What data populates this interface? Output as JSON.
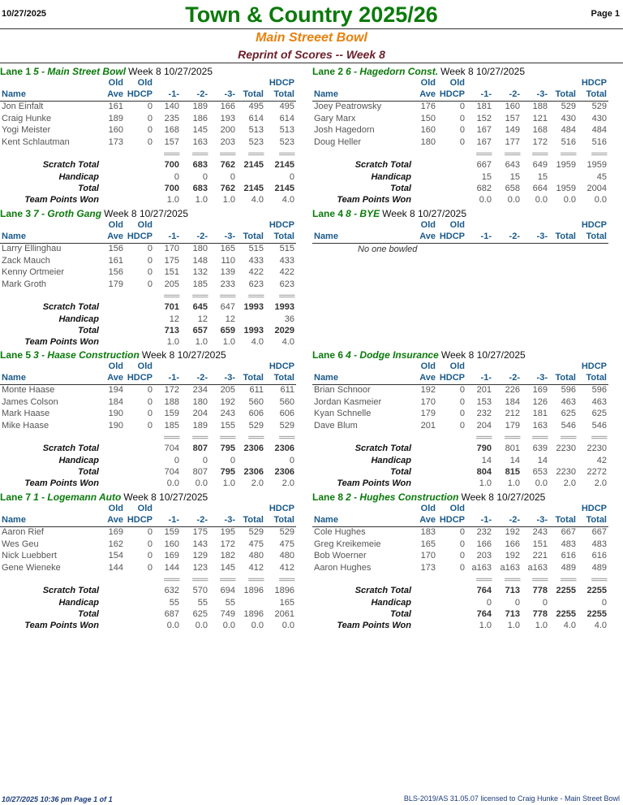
{
  "header": {
    "date": "10/27/2025",
    "page": "Page 1",
    "title": "Town & Country 2025/26",
    "subtitle": "Main Streeet Bowl",
    "report": "Reprint of Scores -- Week 8"
  },
  "columns": {
    "old": "Old",
    "ave": "Ave",
    "hdcp": "HDCP",
    "name": "Name",
    "g1": "-1-",
    "g2": "-2-",
    "g3": "-3-",
    "total": "Total",
    "hdcp_total": "Total",
    "sep": "===="
  },
  "row_labels": {
    "scratch": "Scratch Total",
    "handicap": "Handicap",
    "total": "Total",
    "points": "Team Points Won"
  },
  "lanes": [
    {
      "lane": "Lane 1",
      "team": "5 - Main Street Bowl",
      "week": "Week 8  10/27/2025",
      "players": [
        {
          "name": "Jon Einfalt",
          "ave": "161",
          "hdcp": "0",
          "g1": "140",
          "g2": "189",
          "g3": "166",
          "total": "495",
          "htotal": "495"
        },
        {
          "name": "Craig Hunke",
          "ave": "189",
          "hdcp": "0",
          "g1": "235",
          "g2": "186",
          "g3": "193",
          "total": "614",
          "htotal": "614"
        },
        {
          "name": "Yogi Meister",
          "ave": "160",
          "hdcp": "0",
          "g1": "168",
          "g2": "145",
          "g3": "200",
          "total": "513",
          "htotal": "513"
        },
        {
          "name": "Kent Schlautman",
          "ave": "173",
          "hdcp": "0",
          "g1": "157",
          "g2": "163",
          "g3": "203",
          "total": "523",
          "htotal": "523"
        }
      ],
      "scratch": [
        "700",
        "683",
        "762",
        "2145",
        "2145"
      ],
      "handicap": [
        "0",
        "0",
        "0",
        "",
        "0"
      ],
      "total": [
        "700",
        "683",
        "762",
        "2145",
        "2145"
      ],
      "points": [
        "1.0",
        "1.0",
        "1.0",
        "4.0",
        "4.0"
      ],
      "bold": {
        "scratch": [
          1,
          1,
          1,
          1,
          1
        ],
        "total": [
          1,
          1,
          1,
          1,
          1
        ]
      }
    },
    {
      "lane": "Lane 2",
      "team": "6 - Hagedorn Const.",
      "week": "Week 8  10/27/2025",
      "players": [
        {
          "name": "Joey Peatrowsky",
          "ave": "176",
          "hdcp": "0",
          "g1": "181",
          "g2": "160",
          "g3": "188",
          "total": "529",
          "htotal": "529"
        },
        {
          "name": "Gary Marx",
          "ave": "150",
          "hdcp": "0",
          "g1": "152",
          "g2": "157",
          "g3": "121",
          "total": "430",
          "htotal": "430"
        },
        {
          "name": "Josh Hagedorn",
          "ave": "160",
          "hdcp": "0",
          "g1": "167",
          "g2": "149",
          "g3": "168",
          "total": "484",
          "htotal": "484"
        },
        {
          "name": "Doug Heller",
          "ave": "180",
          "hdcp": "0",
          "g1": "167",
          "g2": "177",
          "g3": "172",
          "total": "516",
          "htotal": "516"
        }
      ],
      "scratch": [
        "667",
        "643",
        "649",
        "1959",
        "1959"
      ],
      "handicap": [
        "15",
        "15",
        "15",
        "",
        "45"
      ],
      "total": [
        "682",
        "658",
        "664",
        "1959",
        "2004"
      ],
      "points": [
        "0.0",
        "0.0",
        "0.0",
        "0.0",
        "0.0"
      ],
      "bold": {
        "scratch": [
          0,
          0,
          0,
          0,
          0
        ],
        "total": [
          0,
          0,
          0,
          0,
          0
        ]
      }
    },
    {
      "lane": "Lane 3",
      "team": "7 - Groth Gang",
      "week": "Week 8  10/27/2025",
      "players": [
        {
          "name": "Larry Ellinghau",
          "ave": "156",
          "hdcp": "0",
          "g1": "170",
          "g2": "180",
          "g3": "165",
          "total": "515",
          "htotal": "515"
        },
        {
          "name": "Zack Mauch",
          "ave": "161",
          "hdcp": "0",
          "g1": "175",
          "g2": "148",
          "g3": "110",
          "total": "433",
          "htotal": "433"
        },
        {
          "name": "Kenny Ortmeier",
          "ave": "156",
          "hdcp": "0",
          "g1": "151",
          "g2": "132",
          "g3": "139",
          "total": "422",
          "htotal": "422"
        },
        {
          "name": "Mark Groth",
          "ave": "179",
          "hdcp": "0",
          "g1": "205",
          "g2": "185",
          "g3": "233",
          "total": "623",
          "htotal": "623"
        }
      ],
      "scratch": [
        "701",
        "645",
        "647",
        "1993",
        "1993"
      ],
      "handicap": [
        "12",
        "12",
        "12",
        "",
        "36"
      ],
      "total": [
        "713",
        "657",
        "659",
        "1993",
        "2029"
      ],
      "points": [
        "1.0",
        "1.0",
        "1.0",
        "4.0",
        "4.0"
      ],
      "bold": {
        "scratch": [
          1,
          1,
          0,
          1,
          1
        ],
        "total": [
          1,
          1,
          1,
          1,
          1
        ]
      }
    },
    {
      "lane": "Lane 4",
      "team": "8 - BYE",
      "week": "Week 8  10/27/2025",
      "message": "No one bowled"
    },
    {
      "lane": "Lane 5",
      "team": "3 - Haase Construction",
      "week": "Week 8  10/27/2025",
      "players": [
        {
          "name": "Monte Haase",
          "ave": "194",
          "hdcp": "0",
          "g1": "172",
          "g2": "234",
          "g3": "205",
          "total": "611",
          "htotal": "611"
        },
        {
          "name": "James Colson",
          "ave": "184",
          "hdcp": "0",
          "g1": "188",
          "g2": "180",
          "g3": "192",
          "total": "560",
          "htotal": "560"
        },
        {
          "name": "Mark Haase",
          "ave": "190",
          "hdcp": "0",
          "g1": "159",
          "g2": "204",
          "g3": "243",
          "total": "606",
          "htotal": "606"
        },
        {
          "name": "Mike Haase",
          "ave": "190",
          "hdcp": "0",
          "g1": "185",
          "g2": "189",
          "g3": "155",
          "total": "529",
          "htotal": "529"
        }
      ],
      "scratch": [
        "704",
        "807",
        "795",
        "2306",
        "2306"
      ],
      "handicap": [
        "0",
        "0",
        "0",
        "",
        "0"
      ],
      "total": [
        "704",
        "807",
        "795",
        "2306",
        "2306"
      ],
      "points": [
        "0.0",
        "0.0",
        "1.0",
        "2.0",
        "2.0"
      ],
      "bold": {
        "scratch": [
          0,
          1,
          1,
          1,
          1
        ],
        "total": [
          0,
          0,
          1,
          1,
          1
        ]
      }
    },
    {
      "lane": "Lane 6",
      "team": "4 - Dodge Insurance",
      "week": "Week 8  10/27/2025",
      "players": [
        {
          "name": "Brian Schnoor",
          "ave": "192",
          "hdcp": "0",
          "g1": "201",
          "g2": "226",
          "g3": "169",
          "total": "596",
          "htotal": "596"
        },
        {
          "name": "Jordan Kasmeier",
          "ave": "170",
          "hdcp": "0",
          "g1": "153",
          "g2": "184",
          "g3": "126",
          "total": "463",
          "htotal": "463"
        },
        {
          "name": "Kyan Schnelle",
          "ave": "179",
          "hdcp": "0",
          "g1": "232",
          "g2": "212",
          "g3": "181",
          "total": "625",
          "htotal": "625"
        },
        {
          "name": "Dave Blum",
          "ave": "201",
          "hdcp": "0",
          "g1": "204",
          "g2": "179",
          "g3": "163",
          "total": "546",
          "htotal": "546"
        }
      ],
      "scratch": [
        "790",
        "801",
        "639",
        "2230",
        "2230"
      ],
      "handicap": [
        "14",
        "14",
        "14",
        "",
        "42"
      ],
      "total": [
        "804",
        "815",
        "653",
        "2230",
        "2272"
      ],
      "points": [
        "1.0",
        "1.0",
        "0.0",
        "2.0",
        "2.0"
      ],
      "bold": {
        "scratch": [
          1,
          0,
          0,
          0,
          0
        ],
        "total": [
          1,
          1,
          0,
          0,
          0
        ]
      }
    },
    {
      "lane": "Lane 7",
      "team": "1 - Logemann Auto",
      "week": "Week 8  10/27/2025",
      "players": [
        {
          "name": "Aaron Rief",
          "ave": "169",
          "hdcp": "0",
          "g1": "159",
          "g2": "175",
          "g3": "195",
          "total": "529",
          "htotal": "529"
        },
        {
          "name": "Wes Geu",
          "ave": "162",
          "hdcp": "0",
          "g1": "160",
          "g2": "143",
          "g3": "172",
          "total": "475",
          "htotal": "475"
        },
        {
          "name": "Nick Luebbert",
          "ave": "154",
          "hdcp": "0",
          "g1": "169",
          "g2": "129",
          "g3": "182",
          "total": "480",
          "htotal": "480"
        },
        {
          "name": "Gene Wieneke",
          "ave": "144",
          "hdcp": "0",
          "g1": "144",
          "g2": "123",
          "g3": "145",
          "total": "412",
          "htotal": "412"
        }
      ],
      "scratch": [
        "632",
        "570",
        "694",
        "1896",
        "1896"
      ],
      "handicap": [
        "55",
        "55",
        "55",
        "",
        "165"
      ],
      "total": [
        "687",
        "625",
        "749",
        "1896",
        "2061"
      ],
      "points": [
        "0.0",
        "0.0",
        "0.0",
        "0.0",
        "0.0"
      ],
      "bold": {
        "scratch": [
          0,
          0,
          0,
          0,
          0
        ],
        "total": [
          0,
          0,
          0,
          0,
          0
        ]
      }
    },
    {
      "lane": "Lane 8",
      "team": "2 - Hughes Construction",
      "week": "Week 8  10/27/2025",
      "players": [
        {
          "name": "Cole Hughes",
          "ave": "183",
          "hdcp": "0",
          "g1": "232",
          "g2": "192",
          "g3": "243",
          "total": "667",
          "htotal": "667"
        },
        {
          "name": "Greg Kreikemeie",
          "ave": "165",
          "hdcp": "0",
          "g1": "166",
          "g2": "166",
          "g3": "151",
          "total": "483",
          "htotal": "483"
        },
        {
          "name": "Bob Woerner",
          "ave": "170",
          "hdcp": "0",
          "g1": "203",
          "g2": "192",
          "g3": "221",
          "total": "616",
          "htotal": "616"
        },
        {
          "name": "Aaron Hughes",
          "ave": "173",
          "hdcp": "0",
          "g1": "a163",
          "g2": "a163",
          "g3": "a163",
          "total": "489",
          "htotal": "489"
        }
      ],
      "scratch": [
        "764",
        "713",
        "778",
        "2255",
        "2255"
      ],
      "handicap": [
        "0",
        "0",
        "0",
        "",
        "0"
      ],
      "total": [
        "764",
        "713",
        "778",
        "2255",
        "2255"
      ],
      "points": [
        "1.0",
        "1.0",
        "1.0",
        "4.0",
        "4.0"
      ],
      "bold": {
        "scratch": [
          1,
          1,
          1,
          1,
          1
        ],
        "total": [
          1,
          1,
          1,
          1,
          1
        ]
      }
    }
  ],
  "footer": {
    "left": "10/27/2025  10:36 pm  Page 1 of 1",
    "right": "BLS-2019/AS 31.05.07 licensed to Craig Hunke - Main Street Bowl"
  }
}
